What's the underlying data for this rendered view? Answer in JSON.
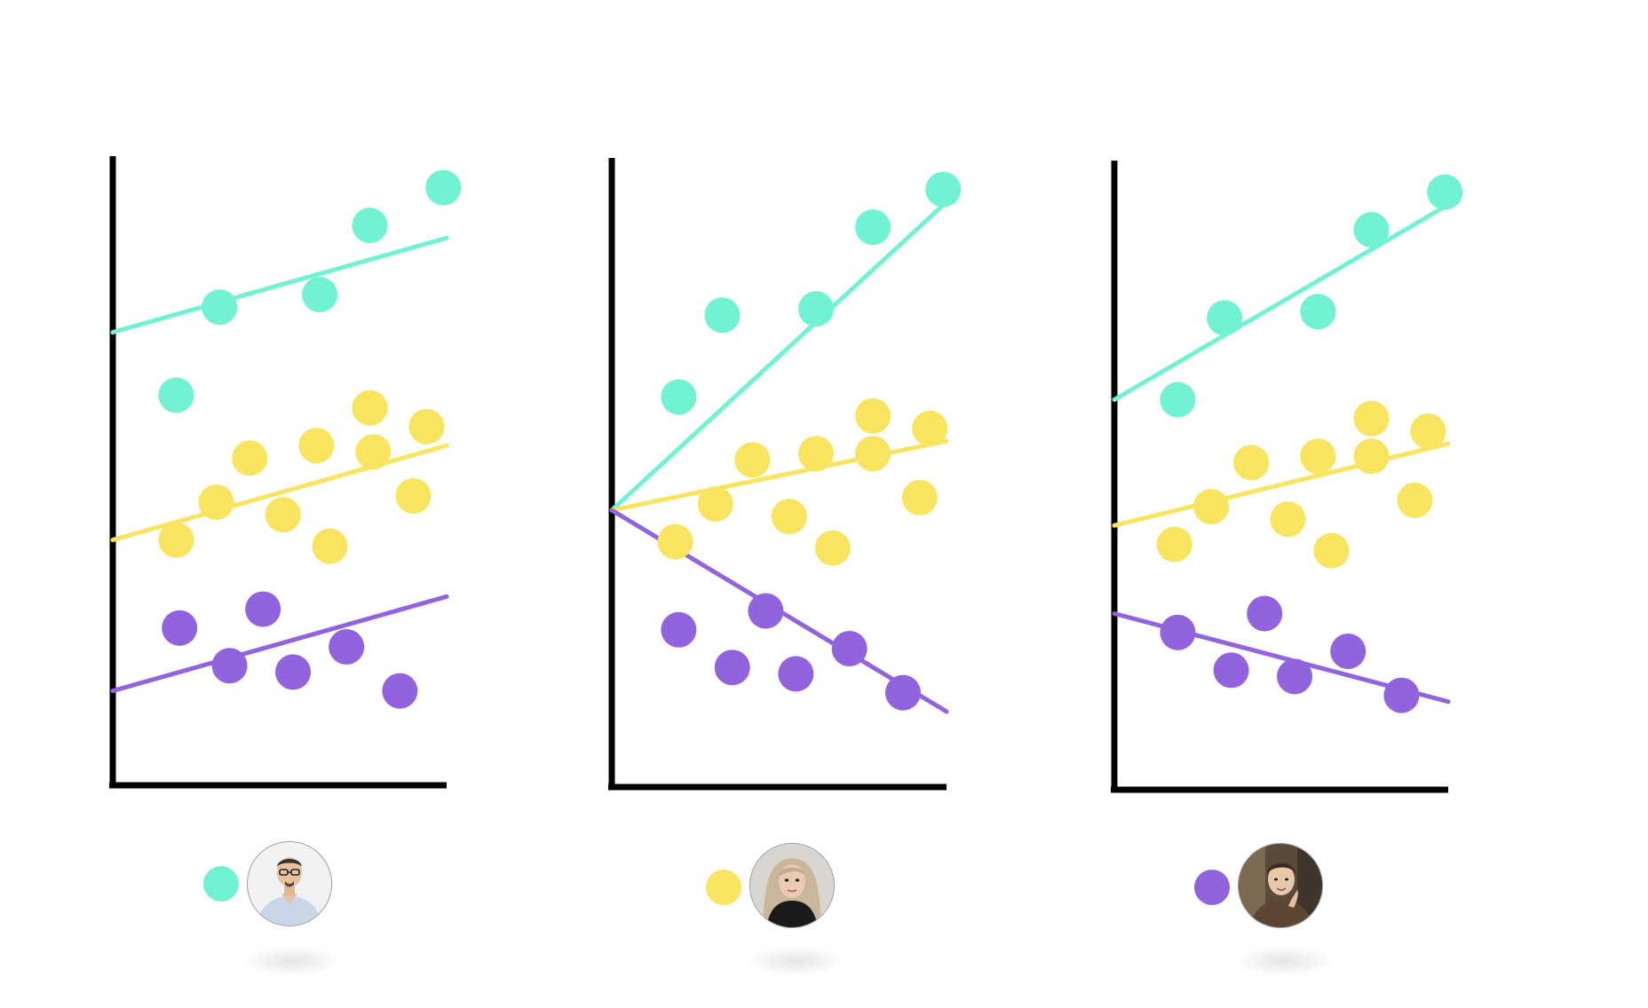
{
  "colors": {
    "teal": "#72F2D5",
    "yellow": "#F9E45F",
    "purple": "#9163DE",
    "axis": "#000000"
  },
  "chart_data": [
    {
      "type": "scatter",
      "title": "",
      "xlabel": "",
      "ylabel": "",
      "xlim": [
        0,
        10
      ],
      "ylim": [
        0,
        10
      ],
      "grid": false,
      "series": [
        {
          "color_key": "teal",
          "points": [
            [
              3.2,
              7.6
            ],
            [
              6.2,
              7.8
            ],
            [
              7.7,
              8.9
            ],
            [
              9.9,
              9.5
            ],
            [
              1.9,
              6.2
            ]
          ],
          "fit": [
            [
              0,
              7.2
            ],
            [
              10,
              8.7
            ]
          ]
        },
        {
          "color_key": "yellow",
          "points": [
            [
              4.1,
              5.2
            ],
            [
              6.1,
              5.4
            ],
            [
              7.7,
              6.0
            ],
            [
              9.4,
              5.7
            ],
            [
              7.8,
              5.3
            ],
            [
              3.1,
              4.5
            ],
            [
              5.1,
              4.3
            ],
            [
              9.0,
              4.6
            ],
            [
              1.9,
              3.9
            ],
            [
              6.5,
              3.8
            ]
          ],
          "fit": [
            [
              0,
              3.9
            ],
            [
              10,
              5.4
            ]
          ]
        },
        {
          "color_key": "purple",
          "points": [
            [
              2.0,
              2.5
            ],
            [
              4.5,
              2.8
            ],
            [
              7.0,
              2.2
            ],
            [
              3.5,
              1.9
            ],
            [
              5.4,
              1.8
            ],
            [
              8.6,
              1.5
            ]
          ],
          "fit": [
            [
              0,
              1.5
            ],
            [
              10,
              3.0
            ]
          ]
        }
      ]
    },
    {
      "type": "scatter",
      "title": "",
      "xlabel": "",
      "ylabel": "",
      "xlim": [
        0,
        10
      ],
      "ylim": [
        0,
        10
      ],
      "grid": false,
      "series": [
        {
          "color_key": "teal",
          "points": [
            [
              3.3,
              7.5
            ],
            [
              6.1,
              7.6
            ],
            [
              7.8,
              8.9
            ],
            [
              9.9,
              9.5
            ],
            [
              2.0,
              6.2
            ]
          ],
          "fit": [
            [
              0,
              4.4
            ],
            [
              10,
              9.3
            ]
          ]
        },
        {
          "color_key": "yellow",
          "points": [
            [
              4.2,
              5.2
            ],
            [
              6.1,
              5.3
            ],
            [
              7.8,
              5.9
            ],
            [
              9.5,
              5.7
            ],
            [
              7.8,
              5.3
            ],
            [
              3.1,
              4.5
            ],
            [
              5.3,
              4.3
            ],
            [
              9.2,
              4.6
            ],
            [
              1.9,
              3.9
            ],
            [
              6.6,
              3.8
            ]
          ],
          "fit": [
            [
              0,
              4.4
            ],
            [
              10,
              5.5
            ]
          ]
        },
        {
          "color_key": "purple",
          "points": [
            [
              2.0,
              2.5
            ],
            [
              4.6,
              2.8
            ],
            [
              7.1,
              2.2
            ],
            [
              3.6,
              1.9
            ],
            [
              5.5,
              1.8
            ],
            [
              8.7,
              1.5
            ]
          ],
          "fit": [
            [
              0,
              4.4
            ],
            [
              10,
              1.2
            ]
          ]
        }
      ]
    },
    {
      "type": "scatter",
      "title": "",
      "xlabel": "",
      "ylabel": "",
      "xlim": [
        0,
        10
      ],
      "ylim": [
        0,
        10
      ],
      "grid": false,
      "series": [
        {
          "color_key": "teal",
          "points": [
            [
              3.3,
              7.5
            ],
            [
              6.1,
              7.6
            ],
            [
              7.7,
              8.9
            ],
            [
              9.9,
              9.5
            ],
            [
              1.9,
              6.2
            ]
          ],
          "fit": [
            [
              0,
              6.2
            ],
            [
              10,
              9.3
            ]
          ]
        },
        {
          "color_key": "yellow",
          "points": [
            [
              4.1,
              5.2
            ],
            [
              6.1,
              5.3
            ],
            [
              7.7,
              5.9
            ],
            [
              9.4,
              5.7
            ],
            [
              7.7,
              5.3
            ],
            [
              2.9,
              4.5
            ],
            [
              5.2,
              4.3
            ],
            [
              9.0,
              4.6
            ],
            [
              1.8,
              3.9
            ],
            [
              6.5,
              3.8
            ]
          ],
          "fit": [
            [
              0,
              4.2
            ],
            [
              10,
              5.5
            ]
          ]
        },
        {
          "color_key": "purple",
          "points": [
            [
              1.9,
              2.5
            ],
            [
              4.5,
              2.8
            ],
            [
              7.0,
              2.2
            ],
            [
              3.5,
              1.9
            ],
            [
              5.4,
              1.8
            ],
            [
              8.6,
              1.5
            ]
          ],
          "fit": [
            [
              0,
              2.8
            ],
            [
              10,
              1.4
            ]
          ]
        }
      ]
    }
  ],
  "legend": [
    {
      "color_key": "teal",
      "avatar": "person-avatar-man-glasses-icon"
    },
    {
      "color_key": "yellow",
      "avatar": "person-avatar-woman-icon"
    },
    {
      "color_key": "purple",
      "avatar": "person-avatar-man-resting-chin-icon"
    }
  ]
}
